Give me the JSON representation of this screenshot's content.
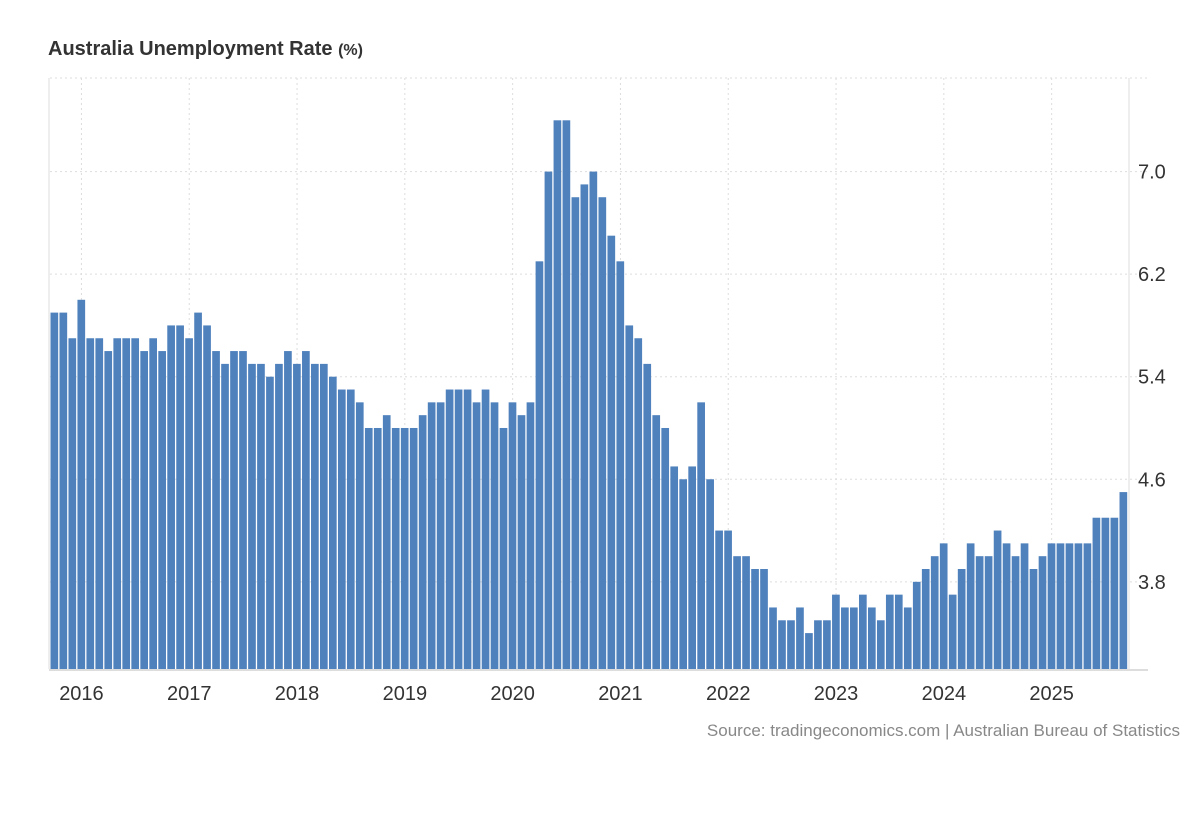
{
  "chart_data": {
    "type": "bar",
    "title": "Australia Unemployment Rate",
    "unit": "(%)",
    "frequency": "monthly",
    "start": "Oct 2015",
    "end": "Sep 2025",
    "values": [
      5.9,
      5.9,
      5.7,
      6.0,
      5.7,
      5.7,
      5.6,
      5.7,
      5.7,
      5.7,
      5.6,
      5.7,
      5.6,
      5.8,
      5.8,
      5.7,
      5.9,
      5.8,
      5.6,
      5.5,
      5.6,
      5.6,
      5.5,
      5.5,
      5.4,
      5.5,
      5.6,
      5.5,
      5.6,
      5.5,
      5.5,
      5.4,
      5.3,
      5.3,
      5.2,
      5.0,
      5.0,
      5.1,
      5.0,
      5.0,
      5.0,
      5.1,
      5.2,
      5.2,
      5.3,
      5.3,
      5.3,
      5.2,
      5.3,
      5.2,
      5.0,
      5.2,
      5.1,
      5.2,
      6.3,
      7.0,
      7.4,
      7.4,
      6.8,
      6.9,
      7.0,
      6.8,
      6.5,
      6.3,
      5.8,
      5.7,
      5.5,
      5.1,
      5.0,
      4.7,
      4.6,
      4.7,
      5.2,
      4.6,
      4.2,
      4.2,
      4.0,
      4.0,
      3.9,
      3.9,
      3.6,
      3.5,
      3.5,
      3.6,
      3.4,
      3.5,
      3.5,
      3.7,
      3.6,
      3.6,
      3.7,
      3.6,
      3.5,
      3.7,
      3.7,
      3.6,
      3.8,
      3.9,
      4.0,
      4.1,
      3.7,
      3.9,
      4.1,
      4.0,
      4.0,
      4.2,
      4.1,
      4.0,
      4.1,
      3.9,
      4.0,
      4.1,
      4.1,
      4.1,
      4.1,
      4.1,
      4.3,
      4.3,
      4.3,
      4.5
    ],
    "x_ticks": [
      {
        "label": "2016",
        "index": 3
      },
      {
        "label": "2017",
        "index": 15
      },
      {
        "label": "2018",
        "index": 27
      },
      {
        "label": "2019",
        "index": 39
      },
      {
        "label": "2020",
        "index": 51
      },
      {
        "label": "2021",
        "index": 63
      },
      {
        "label": "2022",
        "index": 75
      },
      {
        "label": "2023",
        "index": 87
      },
      {
        "label": "2024",
        "index": 99
      },
      {
        "label": "2025",
        "index": 111
      }
    ],
    "y_ticks": [
      "3.8",
      "4.6",
      "5.4",
      "6.2",
      "7.0"
    ],
    "ylim": [
      3.12,
      7.73
    ],
    "y_axis_position": "right",
    "grid": true,
    "bar_color": "#4f81bd",
    "source": "Source: tradingeconomics.com | Australian Bureau of Statistics"
  }
}
